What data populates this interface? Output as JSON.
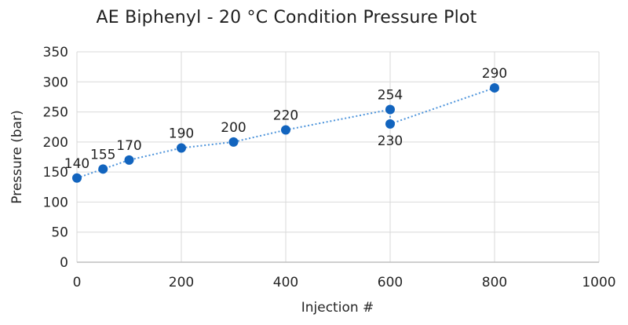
{
  "chart_data": {
    "type": "scatter",
    "title": "AE Biphenyl - 20 °C Condition Pressure Plot",
    "xlabel": "Injection #",
    "ylabel": "Pressure (bar)",
    "xlim": [
      0,
      1000
    ],
    "ylim": [
      0,
      350
    ],
    "xticks": [
      0,
      200,
      400,
      600,
      800,
      1000
    ],
    "yticks": [
      0,
      50,
      100,
      150,
      200,
      250,
      300,
      350
    ],
    "grid": true,
    "legend_position": "none",
    "line_style": "dotted",
    "points": [
      {
        "x": 0,
        "y": 140,
        "label": "140",
        "label_position": "above"
      },
      {
        "x": 50,
        "y": 155,
        "label": "155",
        "label_position": "above"
      },
      {
        "x": 100,
        "y": 170,
        "label": "170",
        "label_position": "above"
      },
      {
        "x": 200,
        "y": 190,
        "label": "190",
        "label_position": "above"
      },
      {
        "x": 300,
        "y": 200,
        "label": "200",
        "label_position": "above"
      },
      {
        "x": 400,
        "y": 220,
        "label": "220",
        "label_position": "above"
      },
      {
        "x": 600,
        "y": 254,
        "label": "254",
        "label_position": "above"
      },
      {
        "x": 600,
        "y": 230,
        "label": "230",
        "label_position": "below"
      },
      {
        "x": 800,
        "y": 290,
        "label": "290",
        "label_position": "above"
      }
    ],
    "colors": {
      "marker": "#1264BE",
      "line": "#4D94DB",
      "grid": "#D9D9D9",
      "axis": "#BFBFBF",
      "text": "#262626"
    }
  }
}
